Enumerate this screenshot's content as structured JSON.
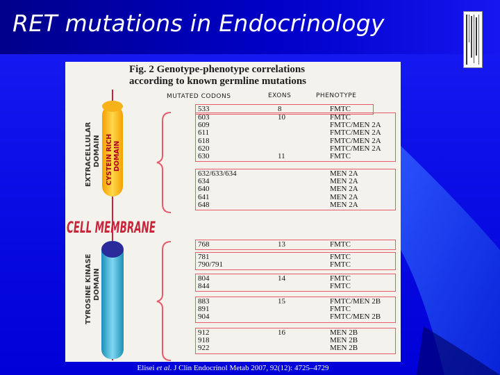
{
  "slide": {
    "title": "RET mutations in Endocrinology",
    "accent_color": "#0000d8"
  },
  "figure": {
    "title_line1": "Fig. 2 Genotype-phenotype correlations",
    "title_line2": "according to known germline mutations",
    "headers": {
      "codons": "MUTATED CODONS",
      "exons": "EXONS",
      "phenotype": "PHENOTYPE"
    },
    "domain_labels": {
      "extracellular": "EXTRACELLULAR DOMAIN",
      "cysteine_rich": "CYSTEIN RICH DOMAIN",
      "cell_membrane": "CELL MEMBRANE",
      "tyrosine_kinase": "TYROSINE KINASE DOMAIN"
    },
    "groups": [
      {
        "rows": [
          {
            "codon": "533",
            "exon": "8",
            "phenotype": "FMTC"
          }
        ]
      },
      {
        "rows": [
          {
            "codon": "603",
            "exon": "10",
            "phenotype": "FMTC"
          },
          {
            "codon": "609",
            "exon": "",
            "phenotype": "FMTC/MEN 2A"
          },
          {
            "codon": "611",
            "exon": "",
            "phenotype": "FMTC/MEN 2A"
          },
          {
            "codon": "618",
            "exon": "",
            "phenotype": "FMTC/MEN 2A"
          },
          {
            "codon": "620",
            "exon": "",
            "phenotype": "FMTC/MEN 2A"
          },
          {
            "codon": "630",
            "exon": "11",
            "phenotype": "FMTC"
          }
        ]
      },
      {
        "rows": [
          {
            "codon": "632/633/634",
            "exon": "",
            "phenotype": "MEN 2A"
          },
          {
            "codon": "634",
            "exon": "",
            "phenotype": "MEN 2A"
          },
          {
            "codon": "640",
            "exon": "",
            "phenotype": "MEN 2A"
          },
          {
            "codon": "641",
            "exon": "",
            "phenotype": "MEN 2A"
          },
          {
            "codon": "648",
            "exon": "",
            "phenotype": "MEN 2A"
          }
        ]
      },
      {
        "rows": [
          {
            "codon": "768",
            "exon": "13",
            "phenotype": "FMTC"
          }
        ]
      },
      {
        "rows": [
          {
            "codon": "781",
            "exon": "",
            "phenotype": "FMTC"
          },
          {
            "codon": "790/791",
            "exon": "",
            "phenotype": "FMTC"
          }
        ]
      },
      {
        "rows": [
          {
            "codon": "804",
            "exon": "14",
            "phenotype": "FMTC"
          },
          {
            "codon": "844",
            "exon": "",
            "phenotype": "FMTC"
          }
        ]
      },
      {
        "rows": [
          {
            "codon": "883",
            "exon": "15",
            "phenotype": "FMTC/MEN 2B"
          },
          {
            "codon": "891",
            "exon": "",
            "phenotype": "FMTC"
          },
          {
            "codon": "904",
            "exon": "",
            "phenotype": "FMTC/MEN 2B"
          }
        ]
      },
      {
        "rows": [
          {
            "codon": "912",
            "exon": "16",
            "phenotype": "MEN 2B"
          },
          {
            "codon": "918",
            "exon": "",
            "phenotype": "MEN 2B"
          },
          {
            "codon": "922",
            "exon": "",
            "phenotype": "MEN 2B"
          }
        ]
      }
    ],
    "citation": {
      "authors": "Elisei ",
      "etal": "et al",
      "rest": ". J Clin Endocrinol Metab 2007, 92(12): 4725–4729"
    }
  }
}
